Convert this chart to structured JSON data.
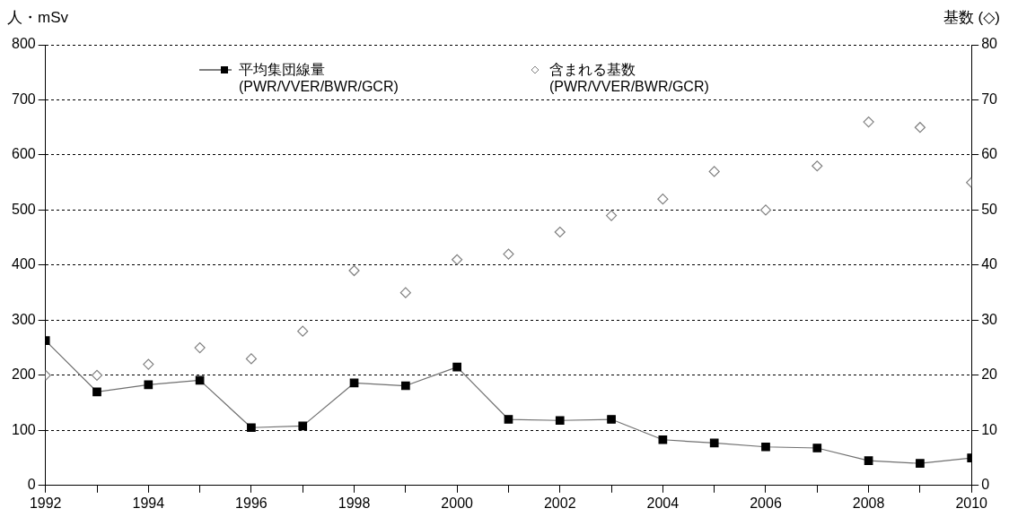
{
  "chart_data": {
    "type": "line",
    "ylabel": "人・mSv",
    "y2label": "基数 (◇)",
    "x": [
      1992,
      1993,
      1994,
      1995,
      1996,
      1997,
      1998,
      1999,
      2000,
      2001,
      2002,
      2003,
      2004,
      2005,
      2006,
      2007,
      2008,
      2009,
      2010
    ],
    "xlim": [
      1992,
      2010
    ],
    "xticks": [
      1992,
      {
        "value": 1993,
        "label": null
      },
      1994,
      {
        "value": 1995,
        "label": null
      },
      1996,
      {
        "value": 1997,
        "label": null
      },
      1998,
      {
        "value": 1999,
        "label": null
      },
      2000,
      {
        "value": 2001,
        "label": null
      },
      2002,
      {
        "value": 2003,
        "label": null
      },
      2004,
      {
        "value": 2005,
        "label": null
      },
      2006,
      {
        "value": 2007,
        "label": null
      },
      2008,
      {
        "value": 2009,
        "label": null
      },
      2010
    ],
    "ylim": [
      0,
      800
    ],
    "yticks": [
      0,
      100,
      200,
      300,
      400,
      500,
      600,
      700,
      800
    ],
    "y2lim": [
      0,
      80
    ],
    "y2ticks": [
      0,
      10,
      20,
      30,
      40,
      50,
      60,
      70,
      80
    ],
    "grid": "y",
    "legend": "top",
    "series": [
      {
        "name": "平均集団線量 (PWR/VVER/BWR/GCR)",
        "color": "#000000",
        "marker": "square",
        "values": [
          263,
          170,
          183,
          191,
          105,
          108,
          186,
          181,
          215,
          120,
          118,
          120,
          83,
          77,
          70,
          68,
          45,
          40,
          50
        ]
      },
      {
        "name": "含まれる基数 (PWR/VVER/BWR/GCR)",
        "type": "scatter",
        "axis": "y2",
        "color": "#808080",
        "marker": "diamond",
        "values": [
          20,
          20,
          22,
          25,
          23,
          28,
          39,
          35,
          41,
          42,
          46,
          49,
          52,
          57,
          50,
          58,
          66,
          65,
          55
        ]
      }
    ]
  }
}
